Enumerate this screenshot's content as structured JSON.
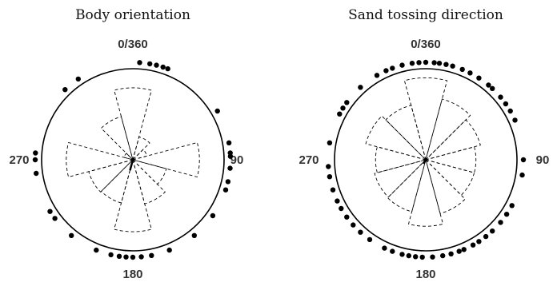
{
  "chart_data": [
    {
      "type": "rose",
      "title": "Body orientation",
      "direction_labels": {
        "top": "0/360",
        "right": "90",
        "bottom": "180",
        "left": "270"
      },
      "bin_width_deg": 30,
      "rose_bins": [
        {
          "angle": 0,
          "radius": 0.79
        },
        {
          "angle": 30,
          "radius": 0.26
        },
        {
          "angle": 60,
          "radius": 0.16
        },
        {
          "angle": 90,
          "radius": 0.73
        },
        {
          "angle": 120,
          "radius": 0.38
        },
        {
          "angle": 150,
          "radius": 0.5
        },
        {
          "angle": 180,
          "radius": 0.79
        },
        {
          "angle": 210,
          "radius": 0.49
        },
        {
          "angle": 240,
          "radius": 0.5
        },
        {
          "angle": 270,
          "radius": 0.73
        },
        {
          "angle": 300,
          "radius": 0.1
        },
        {
          "angle": 330,
          "radius": 0.49
        }
      ],
      "points_deg": [
        4,
        10,
        14,
        18,
        21,
        60,
        80,
        86,
        88,
        95,
        103,
        108,
        125,
        141,
        158,
        169,
        175,
        180,
        184,
        188,
        193,
        202,
        219,
        233,
        238,
        262,
        270,
        274,
        316,
        326
      ],
      "mean_vector": {
        "angle": 195,
        "length": 0.12
      }
    },
    {
      "type": "rose",
      "title": "Sand tossing direction",
      "direction_labels": {
        "top": "0/360",
        "right": "90",
        "bottom": "180",
        "left": "270"
      },
      "bin_width_deg": 30,
      "rose_bins": [
        {
          "angle": 0,
          "radius": 0.9
        },
        {
          "angle": 30,
          "radius": 0.69
        },
        {
          "angle": 60,
          "radius": 0.62
        },
        {
          "angle": 90,
          "radius": 0.55
        },
        {
          "angle": 120,
          "radius": 0.55
        },
        {
          "angle": 150,
          "radius": 0.61
        },
        {
          "angle": 180,
          "radius": 0.73
        },
        {
          "angle": 210,
          "radius": 0.59
        },
        {
          "angle": 240,
          "radius": 0.58
        },
        {
          "angle": 270,
          "radius": 0.55
        },
        {
          "angle": 300,
          "radius": 0.68
        },
        {
          "angle": 330,
          "radius": 0.62
        }
      ],
      "points_deg": [
        0,
        5,
        8,
        12,
        16,
        22,
        27,
        33,
        40,
        43,
        50,
        55,
        60,
        66,
        90,
        99,
        118,
        124,
        130,
        137,
        142,
        147,
        151,
        157,
        160,
        165,
        170,
        176,
        182,
        186,
        190,
        194,
        200,
        205,
        215,
        222,
        228,
        234,
        240,
        245,
        252,
        260,
        266,
        280,
        298,
        302,
        306,
        318,
        330,
        336,
        340,
        346,
        352,
        356
      ],
      "mean_vector": {
        "angle": 210,
        "length": 0.05
      }
    }
  ]
}
